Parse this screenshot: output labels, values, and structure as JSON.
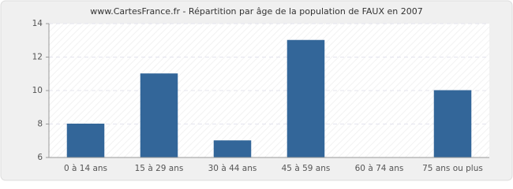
{
  "chart_data": {
    "type": "bar",
    "title": "www.CartesFrance.fr - Répartition par âge de la population de FAUX en 2007",
    "categories": [
      "0 à 14 ans",
      "15 à 29 ans",
      "30 à 44 ans",
      "45 à 59 ans",
      "60 à 74 ans",
      "75 ans ou plus"
    ],
    "values": [
      8,
      11,
      7,
      13,
      6,
      10
    ],
    "color": "#336699",
    "ylim": [
      6,
      14
    ],
    "yticks": [
      6,
      8,
      10,
      12,
      14
    ],
    "grid": true
  }
}
